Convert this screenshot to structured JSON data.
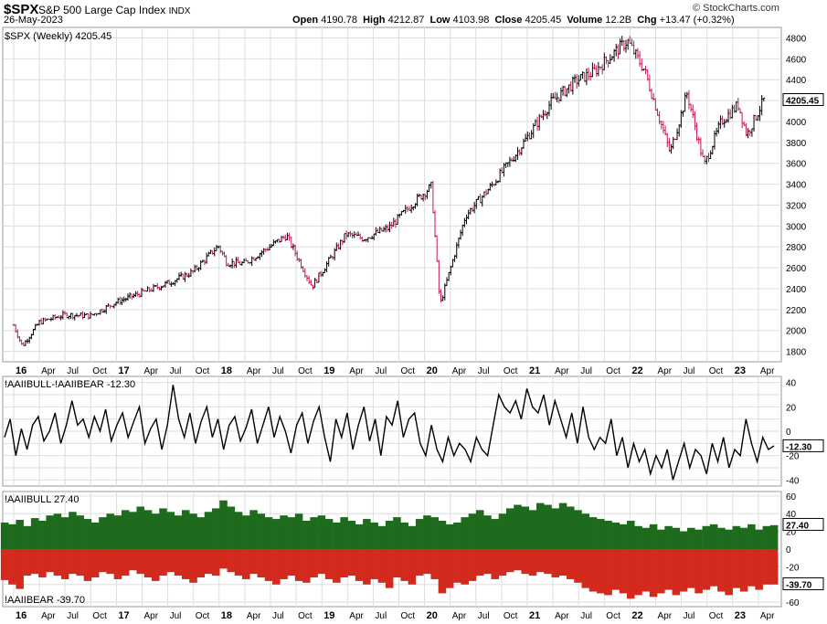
{
  "header": {
    "symbol": "$SPX",
    "description": "S&P 500 Large Cap Index",
    "exchange": "INDX",
    "date": "26-May-2023",
    "open_label": "Open",
    "open": "4190.78",
    "high_label": "High",
    "high": "4212.87",
    "low_label": "Low",
    "low": "4103.98",
    "close_label": "Close",
    "close": "4205.45",
    "volume_label": "Volume",
    "volume": "12.2B",
    "chg_label": "Chg",
    "chg": "+13.47 (+0.32%)",
    "brand": "© StockCharts.com"
  },
  "colors": {
    "up_bar": "#000000",
    "down_bar": "#c2185b",
    "bull": "#1e6b1e",
    "bear": "#d42a1e",
    "grid": "#dddddd"
  },
  "chart_data": [
    {
      "type": "line",
      "panel": "price",
      "title": "$SPX (Weekly) 4205.45",
      "last_value": "4205.45",
      "ylim": [
        1700,
        4900
      ],
      "y_ticks": [
        1800,
        2000,
        2200,
        2400,
        2600,
        2800,
        3000,
        3200,
        3400,
        3600,
        3800,
        4000,
        4200,
        4400,
        4600,
        4800
      ],
      "x_ticks": [
        "16",
        "Apr",
        "Jul",
        "Oct",
        "17",
        "Apr",
        "Jul",
        "Oct",
        "18",
        "Apr",
        "Jul",
        "Oct",
        "19",
        "Apr",
        "Jul",
        "Oct",
        "20",
        "Apr",
        "Jul",
        "Oct",
        "21",
        "Apr",
        "Jul",
        "Oct",
        "22",
        "Apr",
        "Jul",
        "Oct",
        "23",
        "Apr"
      ],
      "x": [
        "2016-01",
        "2016-02",
        "2016-04",
        "2016-07",
        "2016-10",
        "2017-01",
        "2017-04",
        "2017-07",
        "2017-10",
        "2018-01",
        "2018-02",
        "2018-04",
        "2018-07",
        "2018-09",
        "2018-12",
        "2019-04",
        "2019-06",
        "2019-09",
        "2019-12",
        "2020-02",
        "2020-03",
        "2020-06",
        "2020-09",
        "2020-12",
        "2021-04",
        "2021-07",
        "2021-09",
        "2021-12",
        "2022-01",
        "2022-03",
        "2022-06",
        "2022-08",
        "2022-10",
        "2022-12",
        "2023-02",
        "2023-03",
        "2023-05"
      ],
      "values": [
        2050,
        1850,
        2080,
        2150,
        2140,
        2270,
        2360,
        2450,
        2560,
        2810,
        2650,
        2640,
        2800,
        2910,
        2420,
        2920,
        2880,
        2980,
        3230,
        3380,
        2240,
        3100,
        3380,
        3700,
        4180,
        4390,
        4470,
        4700,
        4770,
        4490,
        3700,
        4270,
        3580,
        4000,
        4160,
        3870,
        4205
      ]
    },
    {
      "type": "line",
      "panel": "spread",
      "title": "!AAIIBULL-!AAIIBEAR -12.30",
      "last_value": "-12.30",
      "ylim": [
        -45,
        45
      ],
      "y_ticks": [
        40,
        30,
        20,
        10,
        0,
        -10,
        -20,
        -30,
        -40
      ],
      "y_tick_labels": [
        "40",
        "",
        "20",
        "",
        "0",
        "",
        "-20",
        "",
        "-40"
      ],
      "values": [
        -5,
        10,
        -20,
        2,
        -15,
        5,
        12,
        -8,
        0,
        15,
        -10,
        5,
        25,
        5,
        10,
        -5,
        12,
        0,
        18,
        -8,
        5,
        15,
        -5,
        8,
        20,
        -10,
        2,
        10,
        -15,
        5,
        38,
        10,
        -5,
        15,
        -10,
        8,
        20,
        -5,
        10,
        -15,
        5,
        12,
        -8,
        3,
        18,
        -10,
        5,
        20,
        -5,
        12,
        0,
        -18,
        5,
        15,
        -10,
        8,
        20,
        -5,
        -25,
        10,
        -5,
        15,
        -15,
        5,
        20,
        -8,
        10,
        -20,
        12,
        5,
        25,
        -5,
        10,
        15,
        -10,
        -20,
        5,
        -15,
        -25,
        -5,
        -20,
        -10,
        -15,
        -25,
        -5,
        -15,
        -20,
        5,
        30,
        20,
        15,
        25,
        10,
        35,
        20,
        15,
        30,
        5,
        25,
        10,
        -5,
        15,
        -10,
        20,
        -5,
        -15,
        -5,
        -10,
        10,
        -20,
        -5,
        -30,
        -10,
        -25,
        -15,
        -35,
        -20,
        -30,
        -15,
        -40,
        -25,
        -10,
        -30,
        -15,
        -20,
        -35,
        -10,
        -25,
        -5,
        -30,
        -15,
        -20,
        10,
        -10,
        -25,
        -5,
        -15,
        -12
      ]
    },
    {
      "type": "bar",
      "panel": "bull_bear",
      "title_bull": "!AAIIBULL 27.40",
      "title_bear": "!AAIIBEAR -39.70",
      "bull_last": "27.40",
      "bear_last": "-39.70",
      "ylim": [
        -65,
        65
      ],
      "y_ticks": [
        60,
        40,
        20,
        0,
        -20,
        -40,
        -60
      ],
      "y_tick_labels": [
        "60",
        "40",
        "20",
        "0",
        "-20",
        "-40",
        "-60"
      ],
      "series": [
        {
          "name": "!AAIIBULL",
          "values": [
            30,
            28,
            33,
            26,
            35,
            32,
            38,
            40,
            36,
            42,
            38,
            34,
            30,
            36,
            40,
            38,
            44,
            42,
            48,
            44,
            40,
            46,
            42,
            38,
            44,
            40,
            36,
            42,
            46,
            55,
            48,
            42,
            38,
            44,
            40,
            36,
            34,
            38,
            36,
            40,
            32,
            36,
            38,
            34,
            30,
            36,
            32,
            28,
            34,
            30,
            26,
            32,
            36,
            30,
            26,
            34,
            38,
            36,
            32,
            28,
            30,
            36,
            40,
            44,
            38,
            34,
            40,
            46,
            50,
            48,
            44,
            52,
            50,
            46,
            52,
            48,
            44,
            40,
            36,
            34,
            32,
            30,
            28,
            32,
            26,
            24,
            28,
            22,
            26,
            24,
            20,
            24,
            22,
            26,
            28,
            24,
            22,
            26,
            24,
            28,
            22,
            26,
            27
          ]
        },
        {
          "name": "!AAIIBEAR",
          "values": [
            -35,
            -40,
            -45,
            -30,
            -28,
            -32,
            -26,
            -30,
            -34,
            -28,
            -30,
            -36,
            -32,
            -26,
            -28,
            -34,
            -30,
            -24,
            -28,
            -32,
            -36,
            -30,
            -26,
            -30,
            -34,
            -38,
            -32,
            -28,
            -30,
            -22,
            -26,
            -30,
            -34,
            -28,
            -32,
            -36,
            -40,
            -34,
            -30,
            -36,
            -38,
            -32,
            -28,
            -34,
            -38,
            -32,
            -30,
            -36,
            -40,
            -34,
            -38,
            -44,
            -32,
            -36,
            -40,
            -30,
            -28,
            -34,
            -50,
            -44,
            -38,
            -40,
            -36,
            -30,
            -28,
            -34,
            -30,
            -26,
            -24,
            -28,
            -30,
            -26,
            -28,
            -32,
            -30,
            -34,
            -38,
            -44,
            -48,
            -50,
            -52,
            -46,
            -50,
            -56,
            -52,
            -48,
            -54,
            -50,
            -46,
            -52,
            -48,
            -44,
            -50,
            -46,
            -42,
            -48,
            -52,
            -44,
            -48,
            -42,
            -46,
            -40,
            -40
          ]
        }
      ]
    }
  ]
}
